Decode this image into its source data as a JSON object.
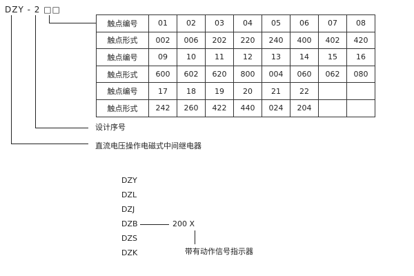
{
  "model_code": "DZY - 2 □□",
  "table": {
    "rows": [
      {
        "label": "触点编号",
        "cells": [
          "01",
          "02",
          "03",
          "04",
          "05",
          "06",
          "07",
          "08"
        ]
      },
      {
        "label": "触点形式",
        "cells": [
          "002",
          "006",
          "202",
          "220",
          "240",
          "400",
          "402",
          "420"
        ]
      },
      {
        "label": "触点编号",
        "cells": [
          "09",
          "10",
          "11",
          "12",
          "13",
          "14",
          "15",
          "16"
        ]
      },
      {
        "label": "触点形式",
        "cells": [
          "600",
          "602",
          "620",
          "800",
          "004",
          "060",
          "062",
          "080"
        ]
      },
      {
        "label": "触点编号",
        "cells": [
          "17",
          "18",
          "19",
          "20",
          "21",
          "22",
          "",
          ""
        ]
      },
      {
        "label": "触点形式",
        "cells": [
          "242",
          "260",
          "422",
          "440",
          "024",
          "204",
          "",
          ""
        ]
      }
    ]
  },
  "design_serial_label": "设计序号",
  "relay_label": "直流电压操作电磁式中间继电器",
  "series": [
    "DZY",
    "DZL",
    "DZJ",
    "DZB",
    "DZS",
    "DZK"
  ],
  "suffix_code": "200  X",
  "indicator_label": "带有动作信号指示器"
}
